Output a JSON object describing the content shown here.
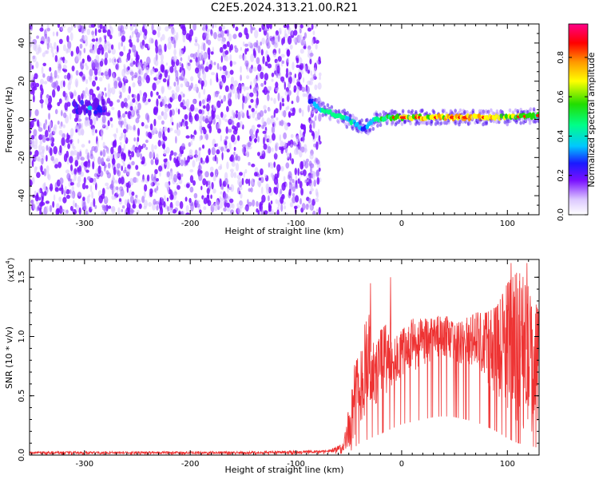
{
  "title": "C2E5.2024.313.21.00.R21",
  "chart_data": [
    {
      "type": "heatmap",
      "title": "C2E5.2024.313.21.00.R21",
      "xlabel": "Height of straight line (km)",
      "ylabel": "Frequency (Hz)",
      "xlim": [
        -352,
        130
      ],
      "ylim": [
        -50,
        50
      ],
      "x_ticks": [
        -300,
        -200,
        -100,
        0,
        100
      ],
      "y_ticks": [
        -40,
        -20,
        0,
        20,
        40
      ],
      "x_tick_labels": [
        "-300",
        "-200",
        "-100",
        "0",
        "100"
      ],
      "y_tick_labels": [
        "-40",
        "-20",
        "0",
        "20",
        "40"
      ],
      "data_end_x": -77,
      "noise_region": {
        "x_range": [
          -352,
          -77
        ],
        "y_range": [
          -50,
          50
        ]
      },
      "hot_spot": {
        "x": -295,
        "y": 6
      },
      "signal_band": {
        "x": [
          -87,
          -75,
          -65,
          -55,
          -45,
          -35,
          -25,
          -10,
          0,
          25,
          50,
          75,
          100,
          130
        ],
        "y": [
          10,
          5,
          3,
          1,
          -2,
          -5,
          0,
          1,
          1,
          1,
          1,
          1,
          1,
          2
        ],
        "amplitude": [
          0.3,
          0.5,
          0.55,
          0.5,
          0.45,
          0.35,
          0.5,
          0.6,
          0.7,
          0.75,
          0.8,
          0.75,
          0.7,
          0.6
        ]
      },
      "colorbar": {
        "label": "Normalized spectral amplitude",
        "range": [
          0,
          0.97
        ],
        "ticks": [
          0.0,
          0.2,
          0.4,
          0.6,
          0.8
        ],
        "tick_labels": [
          "0.0",
          "0.2",
          "0.4",
          "0.6",
          "0.8"
        ]
      },
      "grid": false
    },
    {
      "type": "line",
      "xlabel": "Height of straight line (km)",
      "ylabel": "SNR (10 * v/v)",
      "ylabel_exponent": "(x10",
      "exponent_power": "4",
      "xlim": [
        -352,
        130
      ],
      "ylim": [
        0,
        1.65
      ],
      "x_ticks": [
        -300,
        -200,
        -100,
        0,
        100
      ],
      "y_ticks": [
        0,
        0.5,
        1.0,
        1.5
      ],
      "x_tick_labels": [
        "-300",
        "-200",
        "-100",
        "0",
        "100"
      ],
      "y_tick_labels": [
        "0.0",
        "0.5",
        "1.0",
        "1.5"
      ],
      "color": "#ee3333",
      "envelope": {
        "x": [
          -352,
          -250,
          -150,
          -70,
          -55,
          -50,
          -45,
          -40,
          -35,
          -30,
          -25,
          -20,
          -15,
          -10,
          -5,
          0,
          10,
          20,
          30,
          40,
          50,
          60,
          70,
          80,
          90,
          100,
          110,
          120,
          130
        ],
        "y_low": [
          0.01,
          0.01,
          0.01,
          0.02,
          0.03,
          0.05,
          0.15,
          0.25,
          0.3,
          0.35,
          0.4,
          0.45,
          0.5,
          0.55,
          0.6,
          0.65,
          0.7,
          0.75,
          0.8,
          0.82,
          0.8,
          0.75,
          0.7,
          0.6,
          0.5,
          0.35,
          0.25,
          0.2,
          0.15
        ],
        "y_high": [
          0.03,
          0.03,
          0.03,
          0.04,
          0.1,
          0.4,
          0.75,
          0.85,
          1.1,
          1.2,
          0.9,
          1.05,
          1.1,
          0.95,
          1.0,
          1.05,
          1.15,
          1.15,
          1.15,
          1.2,
          1.1,
          1.15,
          1.2,
          1.2,
          1.25,
          1.45,
          1.55,
          1.45,
          1.2
        ]
      },
      "peaks": [
        {
          "x": -11,
          "y": 1.5
        },
        {
          "x": -30,
          "y": 1.45
        },
        {
          "x": 103,
          "y": 1.62
        },
        {
          "x": 118,
          "y": 1.62
        },
        {
          "x": 111,
          "y": 1.47
        }
      ],
      "grid": false
    }
  ]
}
